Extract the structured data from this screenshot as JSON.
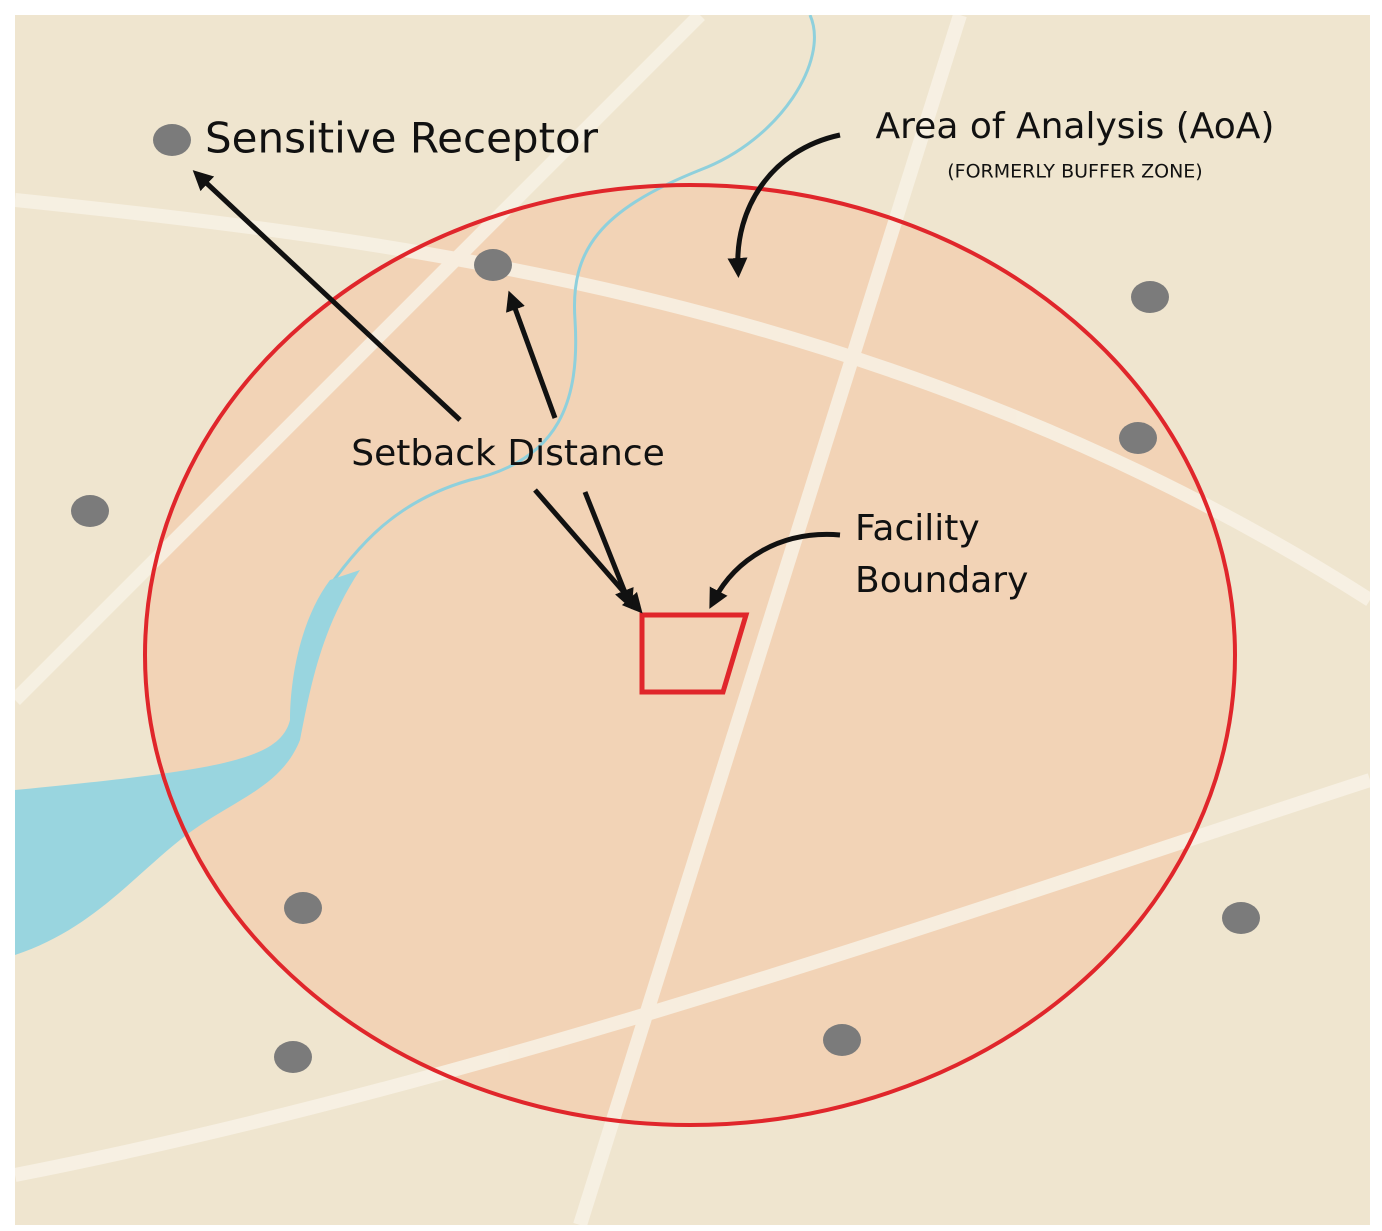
{
  "labels": {
    "sensitive_receptor": "Sensitive Receptor",
    "area_of_analysis": "Area of Analysis (AoA)",
    "formerly": "(FORMERLY BUFFER ZONE)",
    "setback_distance": "Setback Distance",
    "facility_boundary": [
      "Facility",
      "Boundary"
    ]
  }
}
